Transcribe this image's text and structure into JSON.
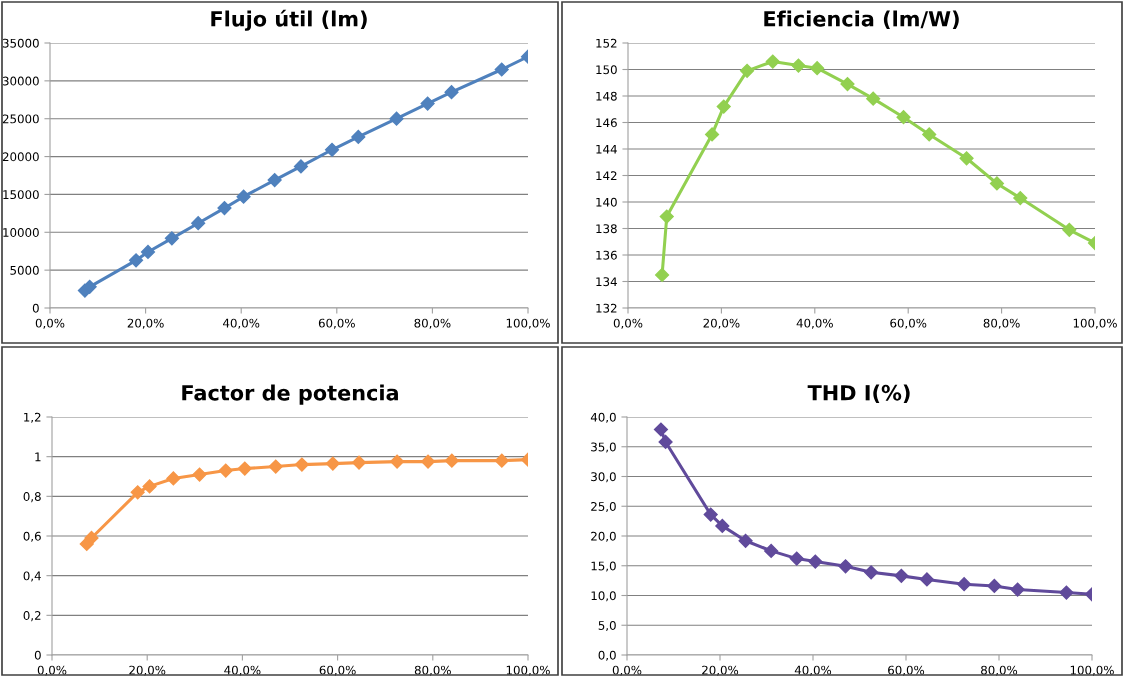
{
  "chart_data": [
    {
      "type": "line",
      "title": "Flujo útil (lm)",
      "marker": "diamond",
      "grid": "y",
      "x": [
        7.3,
        8.3,
        18,
        20.5,
        25.5,
        31,
        36.5,
        40.5,
        47,
        52.5,
        59,
        64.5,
        72.5,
        79,
        84,
        94.5,
        100
      ],
      "series": [
        {
          "color": "#4f81bd",
          "values": [
            2300,
            2800,
            6300,
            7400,
            9200,
            11200,
            13200,
            14700,
            16900,
            18700,
            20900,
            22600,
            25000,
            27000,
            28500,
            31500,
            33200
          ]
        }
      ],
      "xlim": [
        0,
        100
      ],
      "xticks": [
        {
          "value": 0,
          "label": "0,0%"
        },
        {
          "value": 20,
          "label": "20,0%"
        },
        {
          "value": 40,
          "label": "40,0%"
        },
        {
          "value": 60,
          "label": "60,0%"
        },
        {
          "value": 80,
          "label": "80,0%"
        },
        {
          "value": 100,
          "label": "100,0%"
        }
      ],
      "ylim": [
        0,
        35000
      ],
      "yticks": [
        0,
        5000,
        10000,
        15000,
        20000,
        25000,
        30000,
        35000
      ]
    },
    {
      "type": "line",
      "title": "Eficiencia (lm/W)",
      "marker": "diamond",
      "grid": "y",
      "x": [
        7.3,
        8.3,
        18,
        20.5,
        25.5,
        31,
        36.5,
        40.5,
        47,
        52.5,
        59,
        64.5,
        72.5,
        79,
        84,
        94.5,
        100
      ],
      "series": [
        {
          "color": "#92d050",
          "values": [
            134.5,
            138.9,
            145.1,
            147.2,
            149.9,
            150.6,
            150.3,
            150.1,
            148.9,
            147.8,
            146.4,
            145.1,
            143.3,
            141.4,
            140.3,
            137.9,
            136.9
          ]
        }
      ],
      "xlim": [
        0,
        100
      ],
      "xticks": [
        {
          "value": 0,
          "label": "0,0%"
        },
        {
          "value": 20,
          "label": "20,0%"
        },
        {
          "value": 40,
          "label": "40,0%"
        },
        {
          "value": 60,
          "label": "60,0%"
        },
        {
          "value": 80,
          "label": "80,0%"
        },
        {
          "value": 100,
          "label": "100,0%"
        }
      ],
      "ylim": [
        132,
        152
      ],
      "yticks": [
        132,
        134,
        136,
        138,
        140,
        142,
        144,
        146,
        148,
        150,
        152
      ]
    },
    {
      "type": "line",
      "title": "Factor de potencia",
      "marker": "diamond",
      "grid": "y",
      "x": [
        7.3,
        8.3,
        18,
        20.5,
        25.5,
        31,
        36.5,
        40.5,
        47,
        52.5,
        59,
        64.5,
        72.5,
        79,
        84,
        94.5,
        100
      ],
      "series": [
        {
          "color": "#f79646",
          "values": [
            0.56,
            0.59,
            0.82,
            0.85,
            0.89,
            0.91,
            0.93,
            0.94,
            0.95,
            0.96,
            0.965,
            0.97,
            0.975,
            0.975,
            0.98,
            0.98,
            0.985
          ]
        }
      ],
      "xlim": [
        0,
        100
      ],
      "xticks": [
        {
          "value": 0,
          "label": "0,0%"
        },
        {
          "value": 20,
          "label": "20,0%"
        },
        {
          "value": 40,
          "label": "40,0%"
        },
        {
          "value": 60,
          "label": "60,0%"
        },
        {
          "value": 80,
          "label": "80,0%"
        },
        {
          "value": 100,
          "label": "100,0%"
        }
      ],
      "ylim": [
        0,
        1.2
      ],
      "yticks": [
        0,
        {
          "value": 0.2,
          "label": "0,2"
        },
        {
          "value": 0.4,
          "label": "0,4"
        },
        {
          "value": 0.6,
          "label": "0,6"
        },
        {
          "value": 0.8,
          "label": "0,8"
        },
        1,
        {
          "value": 1.2,
          "label": "1,2"
        }
      ]
    },
    {
      "type": "line",
      "title": "THD I(%)",
      "marker": "diamond",
      "grid": "y",
      "x": [
        7.3,
        8.3,
        18,
        20.5,
        25.5,
        31,
        36.5,
        40.5,
        47,
        52.5,
        59,
        64.5,
        72.5,
        79,
        84,
        94.5,
        100
      ],
      "series": [
        {
          "color": "#604a9b",
          "values": [
            37.9,
            35.8,
            23.6,
            21.7,
            19.2,
            17.5,
            16.2,
            15.7,
            14.9,
            13.9,
            13.3,
            12.7,
            11.9,
            11.6,
            11.0,
            10.5,
            10.2
          ]
        }
      ],
      "xlim": [
        0,
        100
      ],
      "xticks": [
        {
          "value": 0,
          "label": "0,0%"
        },
        {
          "value": 20,
          "label": "20,0%"
        },
        {
          "value": 40,
          "label": "40,0%"
        },
        {
          "value": 60,
          "label": "60,0%"
        },
        {
          "value": 80,
          "label": "80,0%"
        },
        {
          "value": 100,
          "label": "100,0%"
        }
      ],
      "ylim": [
        0,
        40
      ],
      "yticks": [
        {
          "value": 0,
          "label": "0,0"
        },
        {
          "value": 5,
          "label": "5,0"
        },
        {
          "value": 10,
          "label": "10,0"
        },
        {
          "value": 15,
          "label": "15,0"
        },
        {
          "value": 20,
          "label": "20,0"
        },
        {
          "value": 25,
          "label": "25,0"
        },
        {
          "value": 30,
          "label": "30,0"
        },
        {
          "value": 35,
          "label": "35,0"
        },
        {
          "value": 40,
          "label": "40,0"
        }
      ]
    }
  ]
}
